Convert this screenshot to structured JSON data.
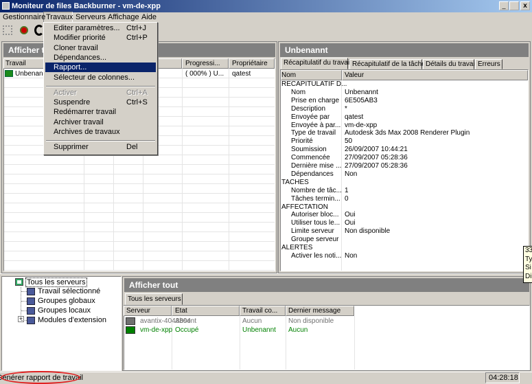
{
  "window": {
    "title": "Moniteur de files Backburner - vm-de-xpp"
  },
  "menu_bar": [
    "Gestionnaire",
    "Travaux",
    "Serveurs",
    "Affichage",
    "Aide"
  ],
  "dropdown": [
    {
      "label": "Editer paramètres...",
      "shortcut": "Ctrl+J"
    },
    {
      "label": "Modifier priorité",
      "shortcut": "Ctrl+P"
    },
    {
      "label": "Cloner travail"
    },
    {
      "label": "Dépendances..."
    },
    {
      "label": "Rapport...",
      "selected": true
    },
    {
      "label": "Sélecteur de colonnes..."
    },
    {
      "label": "Activer",
      "shortcut": "Ctrl+A",
      "disabled": true
    },
    {
      "label": "Suspendre",
      "shortcut": "Ctrl+S"
    },
    {
      "label": "Redémarrer travail"
    },
    {
      "label": "Archiver travail"
    },
    {
      "label": "Archives de travaux"
    },
    {
      "label": "Supprimer",
      "shortcut": "Del"
    }
  ],
  "jobs_panel": {
    "title": "Afficher t",
    "columns": [
      "Travail",
      "Progressi...",
      "Propriétaire"
    ],
    "rows": [
      [
        "Unbenann",
        "( 000% ) U...",
        "qatest"
      ]
    ]
  },
  "details_panel": {
    "title": "Unbenannt",
    "tabs": [
      "Récapitulatif du travail",
      "Récapitulatif de la tâche",
      "Détails du travail",
      "Erreurs"
    ],
    "columns": [
      "Nom",
      "Valeur"
    ],
    "sections": [
      {
        "title": "RECAPITULATIF D...",
        "rows": [
          [
            "Nom",
            "Unbenannt"
          ],
          [
            "Prise en charge",
            "6E505AB3"
          ],
          [
            "Description",
            "*"
          ],
          [
            "Envoyée par",
            "qatest"
          ],
          [
            "Envoyée à par...",
            "vm-de-xpp"
          ],
          [
            "Type de travail",
            "Autodesk 3ds Max 2008 Renderer Plugin"
          ],
          [
            "Priorité",
            "50"
          ],
          [
            "Soumission",
            "26/09/2007 10:44:21"
          ],
          [
            "Commencée",
            "27/09/2007 05:28:36"
          ],
          [
            "Dernière mise ...",
            "27/09/2007 05:28:36"
          ],
          [
            "Dépendances",
            "Non"
          ]
        ]
      },
      {
        "title": "TACHES",
        "rows": [
          [
            "Nombre de tâc...",
            "1"
          ],
          [
            "Tâches termin...",
            "0"
          ]
        ]
      },
      {
        "title": "AFFECTATION",
        "rows": [
          [
            "Autoriser bloc...",
            "Oui"
          ],
          [
            "Utiliser tous le...",
            "Oui"
          ],
          [
            "Limite serveur",
            "Non disponible"
          ],
          [
            "Groupe serveur"
          ]
        ]
      },
      {
        "title": "ALERTES",
        "rows": [
          [
            "Activer les noti...",
            "Non"
          ]
        ]
      }
    ]
  },
  "tooltip": [
    "33",
    "Ty",
    "Si",
    "Di"
  ],
  "server_tree": {
    "root": "Tous les serveurs",
    "children": [
      "Travail sélectionné",
      "Groupes globaux",
      "Groupes locaux",
      "Modules d'extension"
    ]
  },
  "servers_panel": {
    "title": "Afficher tout",
    "tabs": [
      "Tous les serveurs"
    ],
    "columns": [
      "Serveur",
      "Etat",
      "Travail co...",
      "Dernier message"
    ],
    "rows": [
      {
        "cells": [
          "avantix-4043804",
          "Absent",
          "Aucun",
          "Non disponible"
        ],
        "color": "#707070"
      },
      {
        "cells": [
          "vm-de-xpp",
          "Occupé",
          "Unbenannt",
          "Aucun"
        ],
        "color": "#008000"
      }
    ]
  },
  "status_bar": {
    "message": "Générer rapport de travail",
    "time": "04:28:18"
  }
}
